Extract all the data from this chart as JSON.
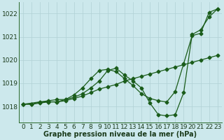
{
  "title": "",
  "xlabel": "Graphe pression niveau de la mer (hPa)",
  "ylabel": "",
  "bg_color": "#cce8ec",
  "line_color": "#1a5c1a",
  "grid_color": "#b0d0d4",
  "xlim_min": -0.5,
  "xlim_max": 23.5,
  "ylim": [
    1017.3,
    1022.5
  ],
  "yticks": [
    1018,
    1019,
    1020,
    1021,
    1022
  ],
  "xticks": [
    0,
    1,
    2,
    3,
    4,
    5,
    6,
    7,
    8,
    9,
    10,
    11,
    12,
    13,
    14,
    15,
    16,
    17,
    18,
    19,
    20,
    21,
    22,
    23
  ],
  "line1_x": [
    0,
    1,
    2,
    3,
    4,
    5,
    6,
    7,
    8,
    9,
    10,
    11,
    12,
    13,
    14,
    15,
    16,
    17,
    18,
    19,
    20,
    21,
    22,
    23
  ],
  "line1_y": [
    1018.1,
    1018.1,
    1018.15,
    1018.2,
    1018.2,
    1018.25,
    1018.35,
    1018.45,
    1018.6,
    1018.75,
    1018.85,
    1018.95,
    1019.1,
    1019.2,
    1019.3,
    1019.4,
    1019.5,
    1019.6,
    1019.7,
    1019.8,
    1019.9,
    1020.0,
    1020.1,
    1020.2
  ],
  "line2_x": [
    0,
    1,
    2,
    3,
    4,
    5,
    6,
    7,
    8,
    9,
    10,
    11,
    12,
    13,
    14,
    15,
    16,
    17,
    18,
    19,
    20,
    21,
    22,
    23
  ],
  "line2_y": [
    1018.1,
    1018.1,
    1018.2,
    1018.2,
    1018.2,
    1018.3,
    1018.5,
    1018.8,
    1019.2,
    1019.55,
    1019.6,
    1019.5,
    1019.2,
    1018.9,
    1018.55,
    1018.35,
    1018.25,
    1018.2,
    1018.65,
    1019.85,
    1021.05,
    1021.15,
    1022.05,
    1022.2
  ],
  "line3_x": [
    0,
    2,
    3,
    4,
    5,
    6,
    7,
    8,
    9,
    10,
    11,
    12,
    13,
    14,
    15,
    16,
    17,
    18,
    19,
    20,
    21,
    22,
    23
  ],
  "line3_y": [
    1018.1,
    1018.2,
    1018.25,
    1018.3,
    1018.3,
    1018.4,
    1018.55,
    1018.8,
    1019.1,
    1019.55,
    1019.65,
    1019.35,
    1019.1,
    1018.8,
    1018.15,
    1017.65,
    1017.6,
    1017.65,
    1018.6,
    1021.1,
    1021.3,
    1021.85,
    1022.2
  ],
  "xlabel_fontsize": 7.0,
  "tick_fontsize": 6.5,
  "marker": "D",
  "markersize": 2.5,
  "linewidth": 0.9
}
